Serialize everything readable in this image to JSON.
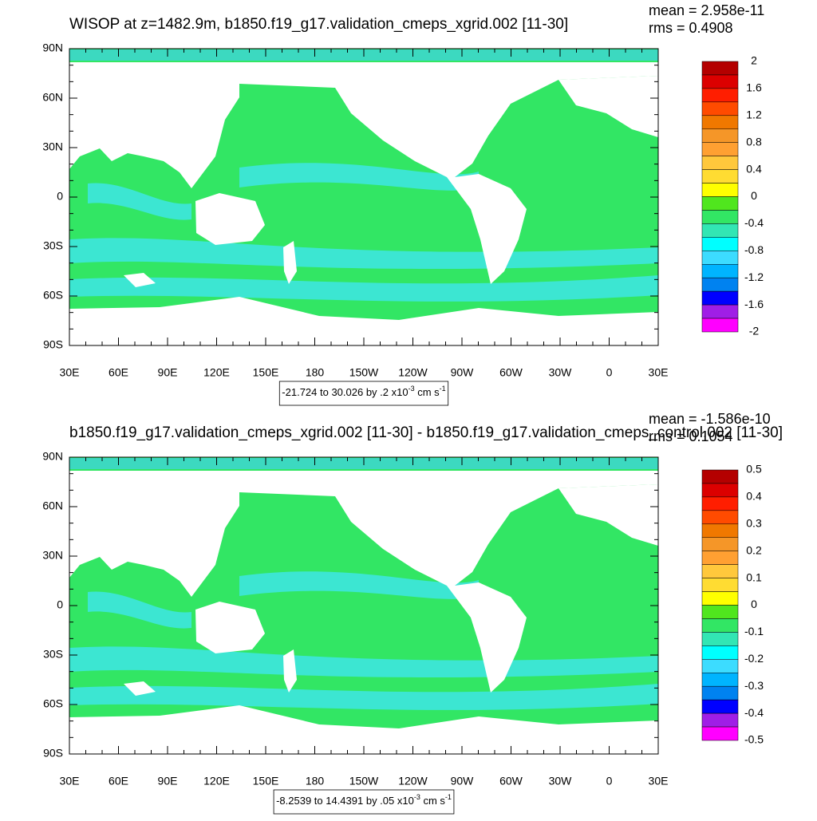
{
  "panels": [
    {
      "title": "WISOP at z=1482.9m, b1850.f19_g17.validation_cmeps_xgrid.002 [11-30]",
      "mean": "mean = 2.958e-11",
      "rms": "rms = 0.4908",
      "lat_labels": [
        "90N",
        "60N",
        "30N",
        "0",
        "30S",
        "60S",
        "90S"
      ],
      "lon_labels": [
        "30E",
        "60E",
        "90E",
        "120E",
        "150E",
        "180",
        "150W",
        "120W",
        "90W",
        "60W",
        "30W",
        "0",
        "30E"
      ],
      "colorbar": {
        "labels": [
          "2",
          "1.6",
          "1.2",
          "0.8",
          "0.4",
          "0",
          "-0.4",
          "-0.8",
          "-1.2",
          "-1.6",
          "-2"
        ],
        "colors": [
          "#b40000",
          "#dc0000",
          "#ff1e00",
          "#ff4b00",
          "#f07800",
          "#f59628",
          "#ffa032",
          "#ffc83c",
          "#ffdc32",
          "#ffff00",
          "#50e61e",
          "#32e664",
          "#32e6b4",
          "#00ffff",
          "#3cdcff",
          "#00b4ff",
          "#0082f0",
          "#0000ff",
          "#a01ee6",
          "#ff00ff"
        ]
      },
      "range": {
        "text": "-21.724 to 30.026 by .2 x10",
        "exp1": "-3",
        "unit": " cm s",
        "exp2": "-1"
      }
    },
    {
      "title": "b1850.f19_g17.validation_cmeps_xgrid.002 [11-30] - b1850.f19_g17.validation_cmeps_control.002 [11-30]",
      "mean": "mean = -1.586e-10",
      "rms": "rms = 0.1054",
      "lat_labels": [
        "90N",
        "60N",
        "30N",
        "0",
        "30S",
        "60S",
        "90S"
      ],
      "lon_labels": [
        "30E",
        "60E",
        "90E",
        "120E",
        "150E",
        "180",
        "150W",
        "120W",
        "90W",
        "60W",
        "30W",
        "0",
        "30E"
      ],
      "colorbar": {
        "labels": [
          "0.5",
          "0.4",
          "0.3",
          "0.2",
          "0.1",
          "0",
          "-0.1",
          "-0.2",
          "-0.3",
          "-0.4",
          "-0.5"
        ],
        "colors": [
          "#b40000",
          "#dc0000",
          "#ff1e00",
          "#ff4b00",
          "#f07800",
          "#f59628",
          "#ffa032",
          "#ffc83c",
          "#ffdc32",
          "#ffff00",
          "#50e61e",
          "#32e664",
          "#32e6b4",
          "#00ffff",
          "#3cdcff",
          "#00b4ff",
          "#0082f0",
          "#0000ff",
          "#a01ee6",
          "#ff00ff"
        ]
      },
      "range": {
        "text": "-8.2539 to 14.4391 by .05 x10",
        "exp1": "-3",
        "unit": " cm s",
        "exp2": "-1"
      }
    }
  ]
}
